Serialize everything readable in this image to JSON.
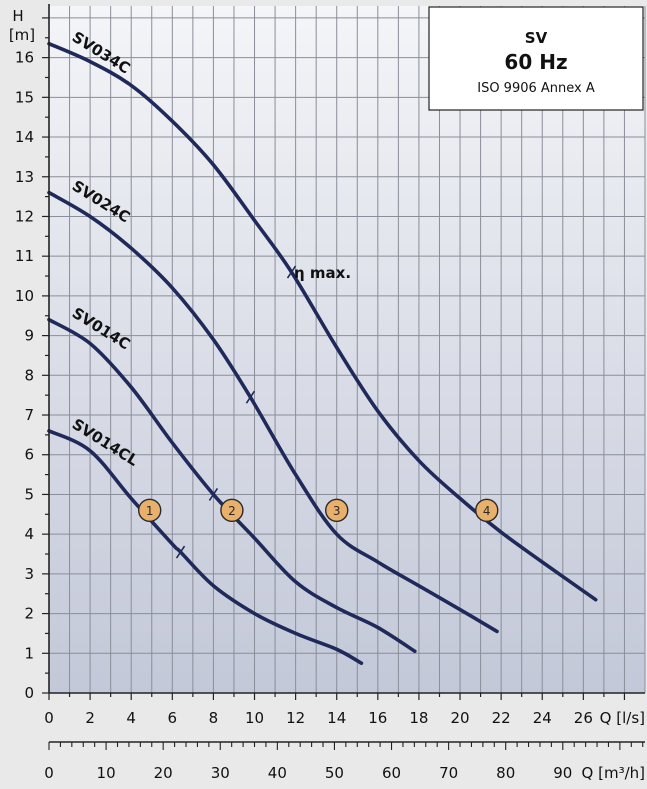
{
  "chart_data": {
    "type": "line",
    "title": "SV",
    "subtitle": "60 Hz",
    "standard": "ISO 9906 Annex A",
    "ylabel_line1": "H",
    "ylabel_line2": "[m]",
    "xlabel_primary": "Q [l/s]",
    "xlabel_secondary": "Q [m³/h]",
    "xlim": [
      0,
      29
    ],
    "ylim": [
      0,
      17.3
    ],
    "x_ticks": [
      "0",
      "2",
      "4",
      "6",
      "8",
      "10",
      "12",
      "14",
      "16",
      "18",
      "20",
      "22",
      "24",
      "26"
    ],
    "y_ticks": [
      "0",
      "1",
      "2",
      "3",
      "4",
      "5",
      "6",
      "7",
      "8",
      "9",
      "10",
      "11",
      "12",
      "13",
      "14",
      "15",
      "16"
    ],
    "secondary_ticks": [
      "0",
      "10",
      "20",
      "30",
      "40",
      "50",
      "60",
      "70",
      "80",
      "90"
    ],
    "grid": true,
    "efficiency_label": "η max.",
    "series": [
      {
        "name": "SV034C",
        "badge": "4",
        "x": [
          0,
          2,
          4,
          6,
          8,
          10,
          11.8,
          14,
          16,
          18,
          20,
          22,
          24,
          26.6
        ],
        "y": [
          16.35,
          15.9,
          15.3,
          14.4,
          13.3,
          11.9,
          10.6,
          8.7,
          7.1,
          5.85,
          4.9,
          4.05,
          3.3,
          2.35
        ],
        "bep": [
          11.8,
          10.6
        ],
        "badge_at": [
          21.3,
          4.6
        ]
      },
      {
        "name": "SV024C",
        "badge": "3",
        "x": [
          0,
          2,
          4,
          6,
          8,
          9.8,
          12,
          14,
          16,
          18,
          20,
          21.8
        ],
        "y": [
          12.6,
          12.0,
          11.2,
          10.2,
          8.9,
          7.45,
          5.5,
          4.0,
          3.3,
          2.7,
          2.1,
          1.55
        ],
        "bep": [
          9.8,
          7.45
        ],
        "badge_at": [
          14.0,
          4.6
        ]
      },
      {
        "name": "SV014C",
        "badge": "2",
        "x": [
          0,
          2,
          4,
          6,
          8,
          10,
          12,
          14,
          16,
          17.8
        ],
        "y": [
          9.4,
          8.8,
          7.7,
          6.3,
          5.0,
          3.9,
          2.8,
          2.15,
          1.65,
          1.05
        ],
        "bep": [
          8.0,
          5.0
        ],
        "badge_at": [
          8.9,
          4.6
        ]
      },
      {
        "name": "SV014CL",
        "badge": "1",
        "x": [
          0,
          2,
          4,
          6,
          6.4,
          8,
          10,
          12,
          14,
          15.2
        ],
        "y": [
          6.6,
          6.1,
          4.9,
          3.75,
          3.55,
          2.7,
          2.0,
          1.5,
          1.1,
          0.75
        ],
        "bep": [
          6.4,
          3.55
        ],
        "badge_at": [
          4.9,
          4.6
        ]
      }
    ]
  }
}
